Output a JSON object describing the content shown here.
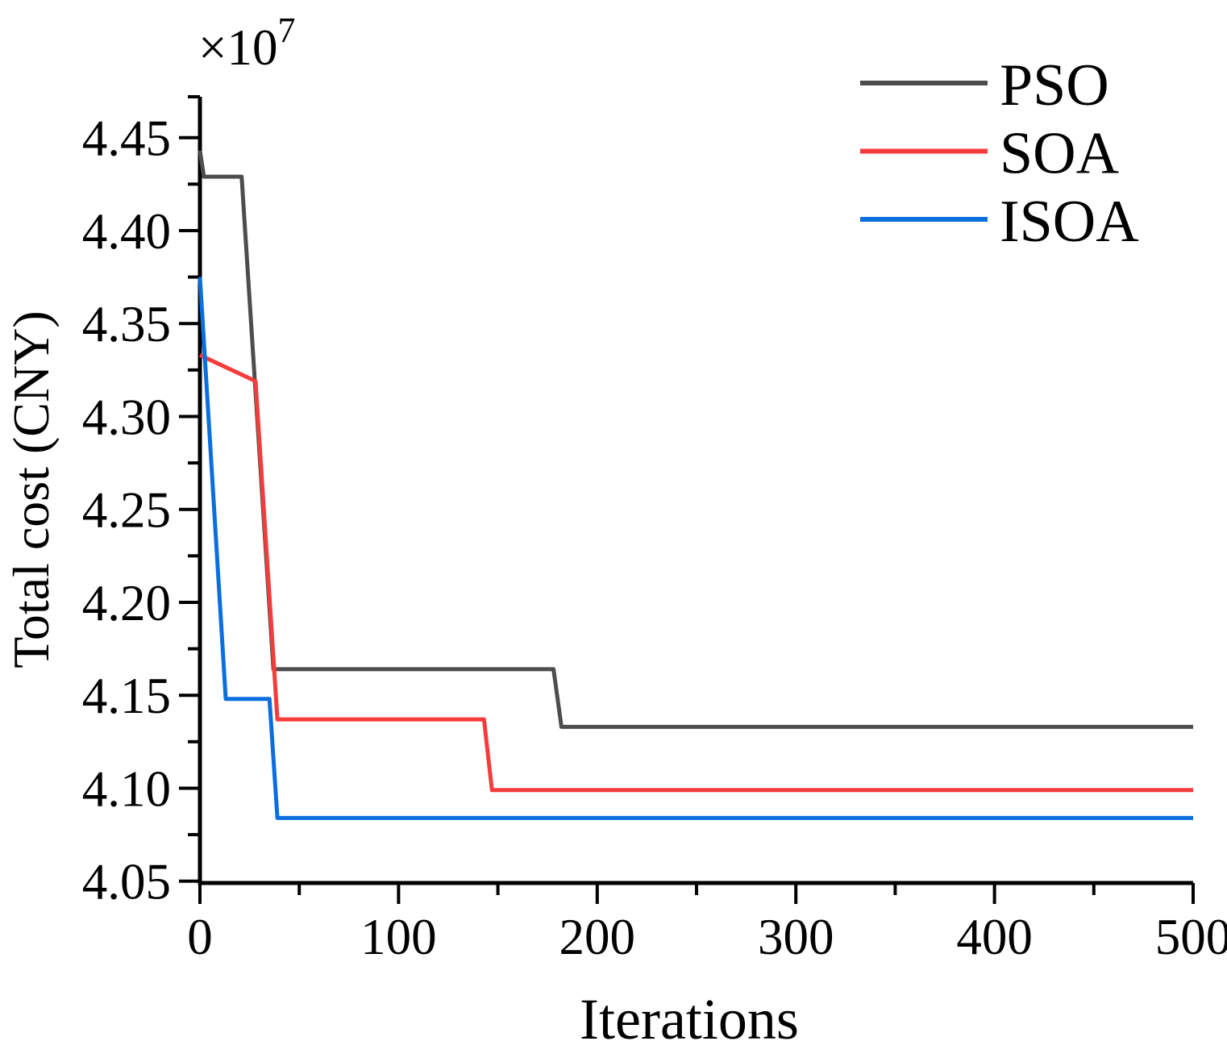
{
  "chart_data": {
    "type": "line",
    "title": "",
    "xlabel": "Iterations",
    "ylabel": "Total cost (CNY)",
    "y_axis_multiplier": {
      "base": "×10",
      "exponent": "7"
    },
    "xlim": [
      0,
      500
    ],
    "ylim": [
      4.049,
      4.472
    ],
    "grid": false,
    "legend_position": "top-right",
    "axis_color": "#000000",
    "x_major_ticks": [
      {
        "value": 0,
        "label": "0"
      },
      {
        "value": 100,
        "label": "100"
      },
      {
        "value": 200,
        "label": "200"
      },
      {
        "value": 300,
        "label": "300"
      },
      {
        "value": 400,
        "label": "400"
      },
      {
        "value": 500,
        "label": "500"
      }
    ],
    "x_minor_ticks": [
      50,
      150,
      250,
      350,
      450
    ],
    "y_major_ticks": [
      {
        "value": 4.45,
        "label": "4.45"
      },
      {
        "value": 4.4,
        "label": "4.40"
      },
      {
        "value": 4.35,
        "label": "4.35"
      },
      {
        "value": 4.3,
        "label": "4.30"
      },
      {
        "value": 4.25,
        "label": "4.25"
      },
      {
        "value": 4.2,
        "label": "4.20"
      },
      {
        "value": 4.15,
        "label": "4.15"
      },
      {
        "value": 4.1,
        "label": "4.10"
      },
      {
        "value": 4.05,
        "label": "4.05"
      }
    ],
    "y_minor_ticks": [
      4.472,
      4.425,
      4.375,
      4.325,
      4.275,
      4.225,
      4.175,
      4.125,
      4.075
    ],
    "series": [
      {
        "name": "PSO",
        "color": "#4d4d4d",
        "points": [
          [
            0,
            4.443
          ],
          [
            2,
            4.429
          ],
          [
            21,
            4.429
          ],
          [
            37,
            4.164
          ],
          [
            178,
            4.164
          ],
          [
            182,
            4.133
          ],
          [
            500,
            4.133
          ]
        ]
      },
      {
        "name": "SOA",
        "color": "#f63b3b",
        "points": [
          [
            0,
            4.333
          ],
          [
            28,
            4.319
          ],
          [
            39,
            4.137
          ],
          [
            143,
            4.137
          ],
          [
            147,
            4.099
          ],
          [
            500,
            4.099
          ]
        ]
      },
      {
        "name": "ISOA",
        "color": "#0b6edf",
        "points": [
          [
            0,
            4.375
          ],
          [
            13,
            4.148
          ],
          [
            35,
            4.148
          ],
          [
            39,
            4.084
          ],
          [
            500,
            4.084
          ]
        ]
      }
    ]
  }
}
